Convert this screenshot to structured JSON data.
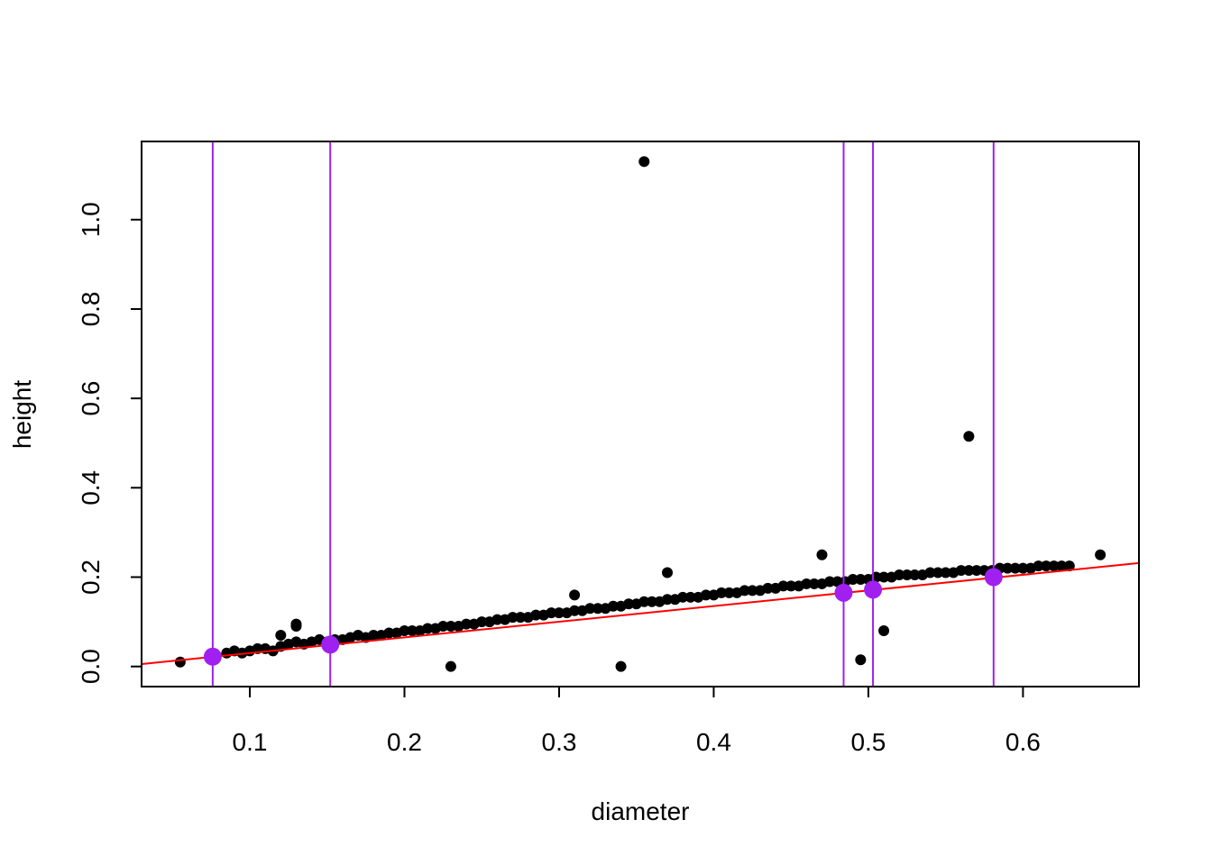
{
  "chart_data": {
    "type": "scatter",
    "title": "",
    "xlabel": "diameter",
    "ylabel": "height",
    "xlim": [
      0.03,
      0.675
    ],
    "ylim": [
      -0.045,
      1.175
    ],
    "xticks": [
      0.1,
      0.2,
      0.3,
      0.4,
      0.5,
      0.6
    ],
    "yticks": [
      0.0,
      0.2,
      0.4,
      0.6,
      0.8,
      1.0
    ],
    "xtick_labels": [
      "0.1",
      "0.2",
      "0.3",
      "0.4",
      "0.5",
      "0.6"
    ],
    "ytick_labels": [
      "0.0",
      "0.2",
      "0.4",
      "0.6",
      "0.8",
      "1.0"
    ],
    "grid": false,
    "colors": {
      "points": "#000000",
      "fit_line": "#ff0000",
      "highlight": "#a020f0"
    },
    "series": [
      {
        "kind": "points",
        "x": [
          0.055,
          0.075,
          0.085,
          0.09,
          0.095,
          0.1,
          0.105,
          0.11,
          0.115,
          0.12,
          0.12,
          0.125,
          0.13,
          0.13,
          0.135,
          0.14,
          0.145,
          0.15,
          0.155,
          0.16,
          0.165,
          0.17,
          0.175,
          0.18,
          0.185,
          0.19,
          0.195,
          0.2,
          0.205,
          0.21,
          0.215,
          0.22,
          0.225,
          0.23,
          0.235,
          0.24,
          0.245,
          0.25,
          0.255,
          0.26,
          0.265,
          0.27,
          0.275,
          0.28,
          0.285,
          0.29,
          0.295,
          0.3,
          0.305,
          0.31,
          0.315,
          0.32,
          0.325,
          0.33,
          0.335,
          0.34,
          0.345,
          0.35,
          0.355,
          0.36,
          0.365,
          0.37,
          0.375,
          0.38,
          0.385,
          0.39,
          0.395,
          0.4,
          0.405,
          0.41,
          0.415,
          0.42,
          0.425,
          0.43,
          0.435,
          0.44,
          0.445,
          0.45,
          0.455,
          0.46,
          0.465,
          0.47,
          0.475,
          0.48,
          0.485,
          0.49,
          0.495,
          0.5,
          0.505,
          0.51,
          0.515,
          0.52,
          0.525,
          0.53,
          0.535,
          0.54,
          0.545,
          0.55,
          0.555,
          0.56,
          0.565,
          0.57,
          0.575,
          0.58,
          0.585,
          0.59,
          0.595,
          0.6,
          0.605,
          0.61,
          0.615,
          0.62,
          0.625,
          0.63,
          0.65,
          0.355,
          0.565,
          0.23,
          0.34,
          0.495,
          0.51,
          0.13,
          0.31,
          0.37,
          0.47
        ],
        "y": [
          0.01,
          0.025,
          0.03,
          0.035,
          0.03,
          0.035,
          0.04,
          0.04,
          0.035,
          0.045,
          0.07,
          0.05,
          0.055,
          0.09,
          0.05,
          0.055,
          0.06,
          0.055,
          0.06,
          0.06,
          0.065,
          0.07,
          0.065,
          0.07,
          0.07,
          0.075,
          0.075,
          0.08,
          0.08,
          0.08,
          0.085,
          0.085,
          0.09,
          0.09,
          0.09,
          0.095,
          0.095,
          0.1,
          0.1,
          0.105,
          0.105,
          0.11,
          0.11,
          0.11,
          0.115,
          0.115,
          0.12,
          0.12,
          0.12,
          0.125,
          0.125,
          0.13,
          0.13,
          0.13,
          0.135,
          0.135,
          0.14,
          0.14,
          0.145,
          0.145,
          0.145,
          0.15,
          0.15,
          0.155,
          0.155,
          0.155,
          0.16,
          0.16,
          0.165,
          0.165,
          0.165,
          0.17,
          0.17,
          0.17,
          0.175,
          0.175,
          0.18,
          0.18,
          0.18,
          0.185,
          0.185,
          0.185,
          0.19,
          0.19,
          0.19,
          0.195,
          0.195,
          0.195,
          0.2,
          0.2,
          0.2,
          0.205,
          0.205,
          0.205,
          0.205,
          0.21,
          0.21,
          0.21,
          0.21,
          0.215,
          0.215,
          0.215,
          0.215,
          0.215,
          0.22,
          0.22,
          0.22,
          0.22,
          0.22,
          0.225,
          0.225,
          0.225,
          0.225,
          0.225,
          0.25,
          1.13,
          0.515,
          0.0,
          0.0,
          0.015,
          0.08,
          0.095,
          0.16,
          0.21,
          0.25
        ]
      },
      {
        "kind": "fit_line",
        "x": [
          0.03,
          0.675
        ],
        "y": [
          0.0055,
          0.2315
        ]
      },
      {
        "kind": "highlighted_points",
        "x": [
          0.076,
          0.152,
          0.484,
          0.503,
          0.581
        ],
        "y": [
          0.022,
          0.049,
          0.165,
          0.172,
          0.2
        ]
      },
      {
        "kind": "vertical_lines",
        "x": [
          0.076,
          0.152,
          0.484,
          0.503,
          0.581
        ]
      }
    ]
  }
}
